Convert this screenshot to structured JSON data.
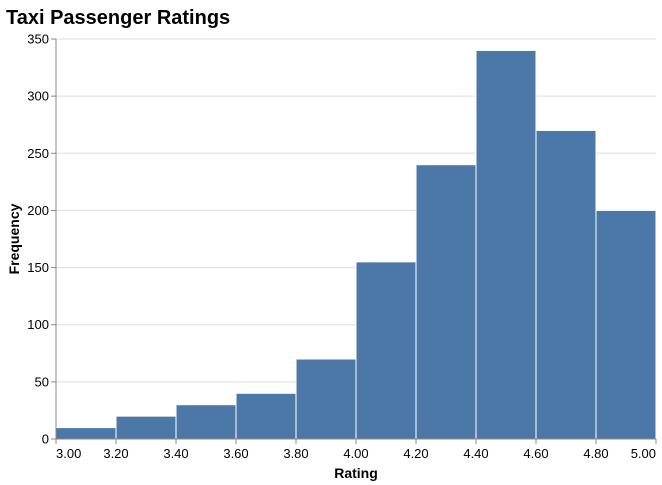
{
  "chart_data": {
    "type": "bar",
    "title": "Taxi Passenger Ratings",
    "xlabel": "Rating",
    "ylabel": "Frequency",
    "bins": [
      {
        "start": 3.0,
        "end": 3.2,
        "count": 10
      },
      {
        "start": 3.2,
        "end": 3.4,
        "count": 20
      },
      {
        "start": 3.4,
        "end": 3.6,
        "count": 30
      },
      {
        "start": 3.6,
        "end": 3.8,
        "count": 40
      },
      {
        "start": 3.8,
        "end": 4.0,
        "count": 70
      },
      {
        "start": 4.0,
        "end": 4.2,
        "count": 155
      },
      {
        "start": 4.2,
        "end": 4.4,
        "count": 240
      },
      {
        "start": 4.4,
        "end": 4.6,
        "count": 340
      },
      {
        "start": 4.6,
        "end": 4.8,
        "count": 270
      },
      {
        "start": 4.8,
        "end": 5.0,
        "count": 200
      }
    ],
    "xlim": [
      3.0,
      5.0
    ],
    "ylim": [
      0,
      350
    ],
    "x_ticks": [
      "3.00",
      "3.20",
      "3.40",
      "3.60",
      "3.80",
      "4.00",
      "4.20",
      "4.40",
      "4.60",
      "4.80",
      "5.00"
    ],
    "y_ticks": [
      0,
      50,
      100,
      150,
      200,
      250,
      300,
      350
    ],
    "grid": true,
    "bar_color": "#4c78a8"
  }
}
